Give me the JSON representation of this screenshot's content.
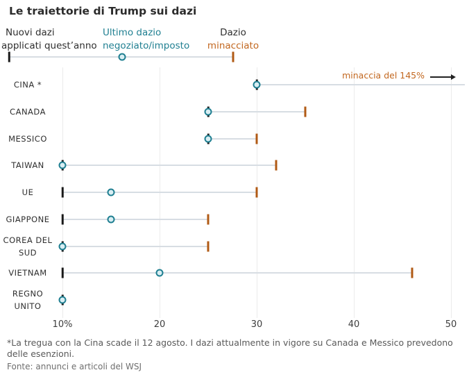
{
  "title": "Le traiettorie di Trump sui dazi",
  "legend": {
    "applied": {
      "line1": "Nuovi dazi",
      "line2": "applicati quest’anno"
    },
    "latest": {
      "line1": "Ultimo dazio",
      "line2": "negoziato/imposto"
    },
    "threatened": {
      "line1": "Dazio",
      "line2": "minacciato"
    }
  },
  "colors": {
    "applied_tick": "#1a1a1a",
    "latest_circle_stroke": "#1f7f91",
    "latest_circle_fill": "#d9eef3",
    "threatened_tick": "#b05a14",
    "connector": "#d7dde3",
    "annotation_text": "#c2671f"
  },
  "chart_data": {
    "type": "dumbbell",
    "title": "Le traiettorie di Trump sui dazi",
    "categories": [
      "CINA *",
      "CANADA",
      "MESSICO",
      "TAIWAN",
      "UE",
      "GIAPPONE",
      "COREA DEL SUD",
      "VIETNAM",
      "REGNO UNITO"
    ],
    "series": [
      {
        "name": "Nuovi dazi applicati quest’anno",
        "marker": "black-tick",
        "values": [
          30,
          25,
          25,
          10,
          10,
          10,
          10,
          10,
          10
        ]
      },
      {
        "name": "Ultimo dazio negoziato/imposto",
        "marker": "teal-circle",
        "values": [
          30,
          25,
          25,
          10,
          15,
          15,
          10,
          20,
          10
        ]
      },
      {
        "name": "Dazio minacciato",
        "marker": "orange-tick",
        "values": [
          145,
          35,
          30,
          32,
          30,
          25,
          25,
          46,
          null
        ]
      }
    ],
    "x_axis": {
      "min": 10,
      "max": 50,
      "ticks": [
        10,
        20,
        30,
        40,
        50
      ],
      "tick_labels": [
        "10%",
        "20",
        "30",
        "40",
        "50"
      ],
      "grid": true
    },
    "annotation": {
      "text": "minaccia del 145%",
      "category": "CINA *",
      "value_offscale": 145
    }
  },
  "footnote": "*La tregua con la Cina scade il 12 agosto. I dazi attualmente in vigore su Canada e Messico prevedono delle esenzioni.",
  "source": "Fonte: annunci e articoli del WSJ"
}
